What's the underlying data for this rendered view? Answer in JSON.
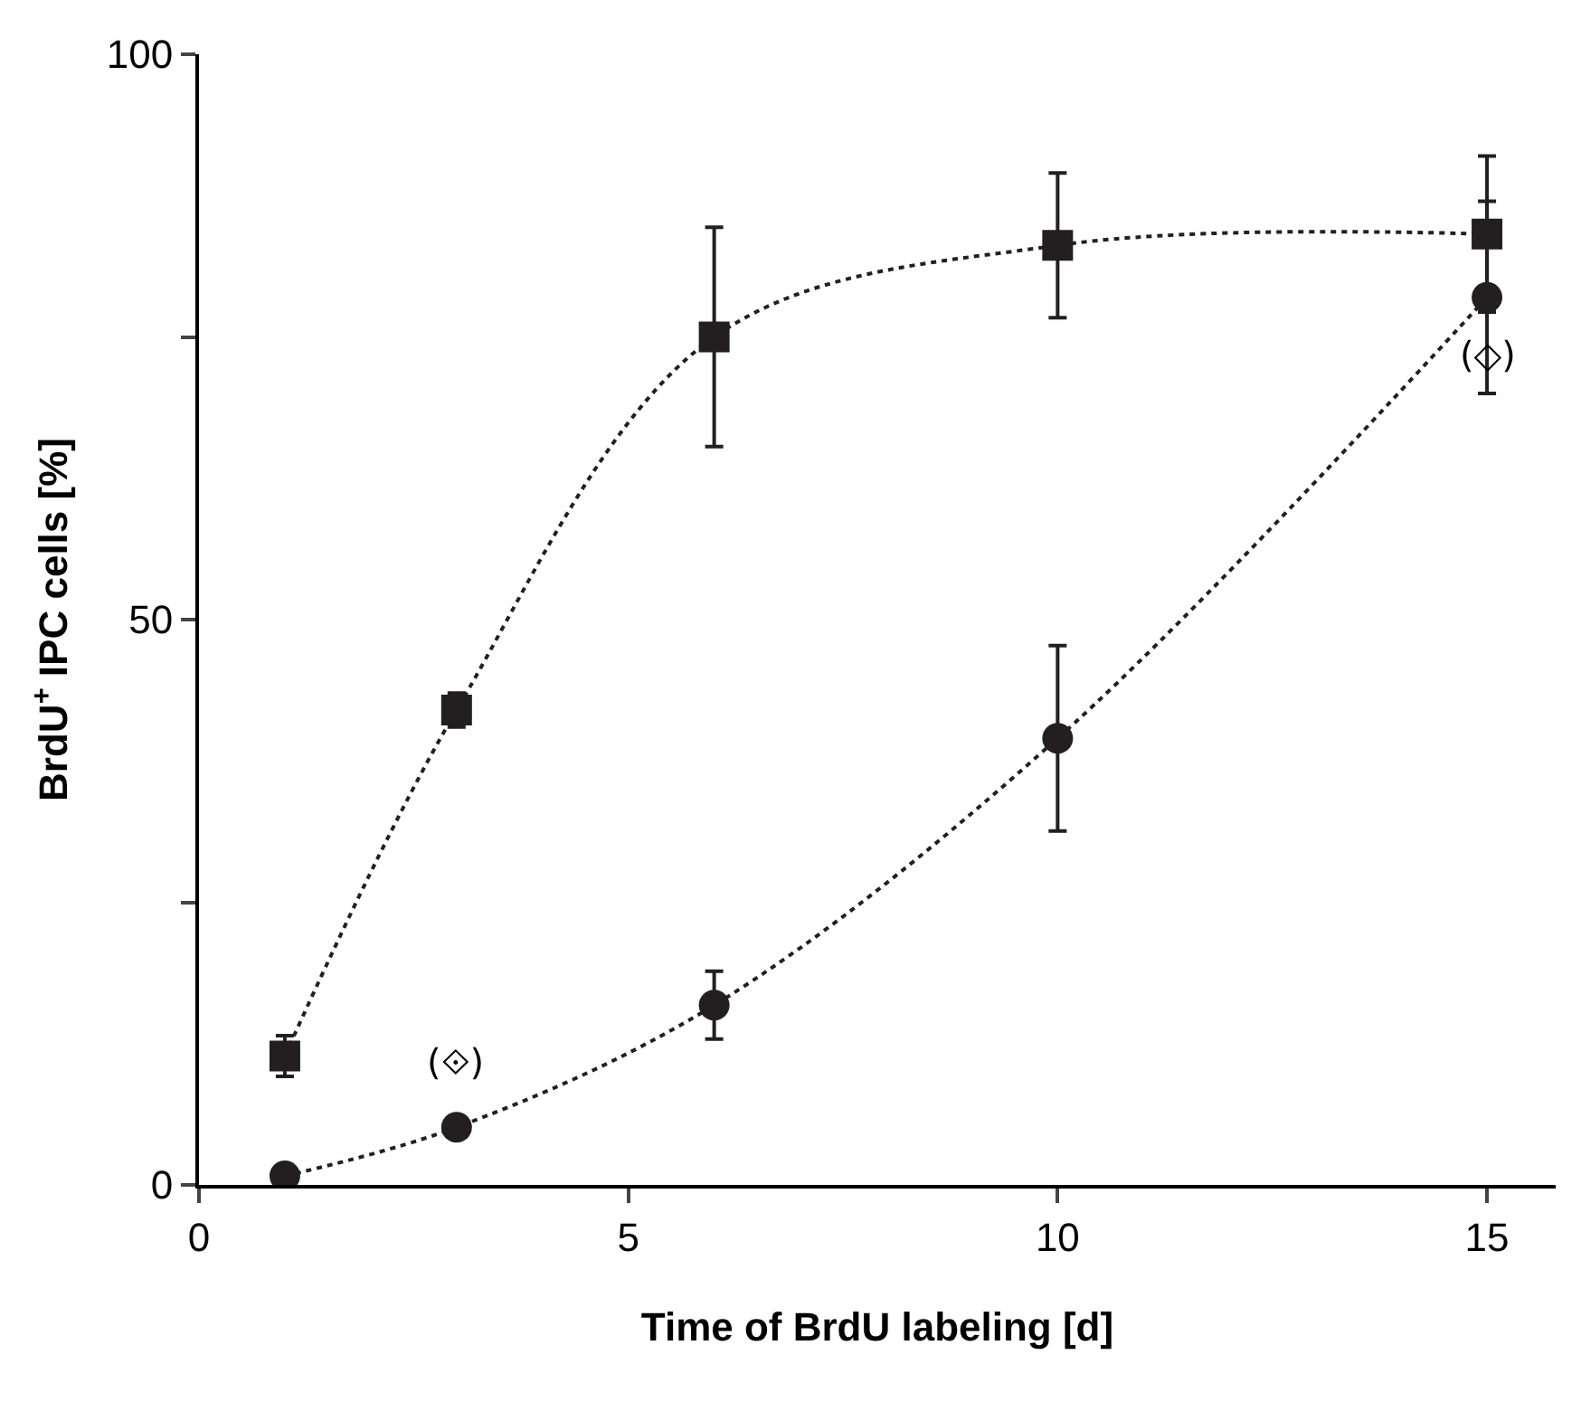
{
  "chart_data": {
    "type": "line",
    "xlabel": "Time of BrdU labeling [d]",
    "ylabel": "BrdU$^{+}$ IPC cells [%]",
    "x": [
      1,
      3,
      6,
      10,
      15
    ],
    "series": [
      {
        "color": "#231f20",
        "marker": "square",
        "values": [
          11.4,
          42,
          75,
          83.1,
          84.1
        ],
        "errors": [
          1.8,
          1.5,
          9.7,
          6.4,
          6.9
        ]
      },
      {
        "color": "#231f20",
        "marker": "circle",
        "values": [
          0.8,
          5.1,
          15.9,
          39.5,
          78.5
        ],
        "errors": [
          null,
          null,
          3,
          8.2,
          8.5
        ]
      }
    ],
    "line_style": "dotted",
    "xlim": [
      0,
      15.8
    ],
    "xticks": [
      0,
      5,
      10,
      15
    ],
    "ylim": [
      0,
      100
    ],
    "yticks": [
      0,
      {
        "value": 25,
        "label": null
      },
      50,
      {
        "value": 75,
        "label": null
      },
      100
    ],
    "annotations": [
      {
        "text": "(⟐)",
        "x": 3,
        "y": 5.1
      },
      {
        "text": "(◇)",
        "x": 15,
        "y": 78.5
      }
    ]
  }
}
